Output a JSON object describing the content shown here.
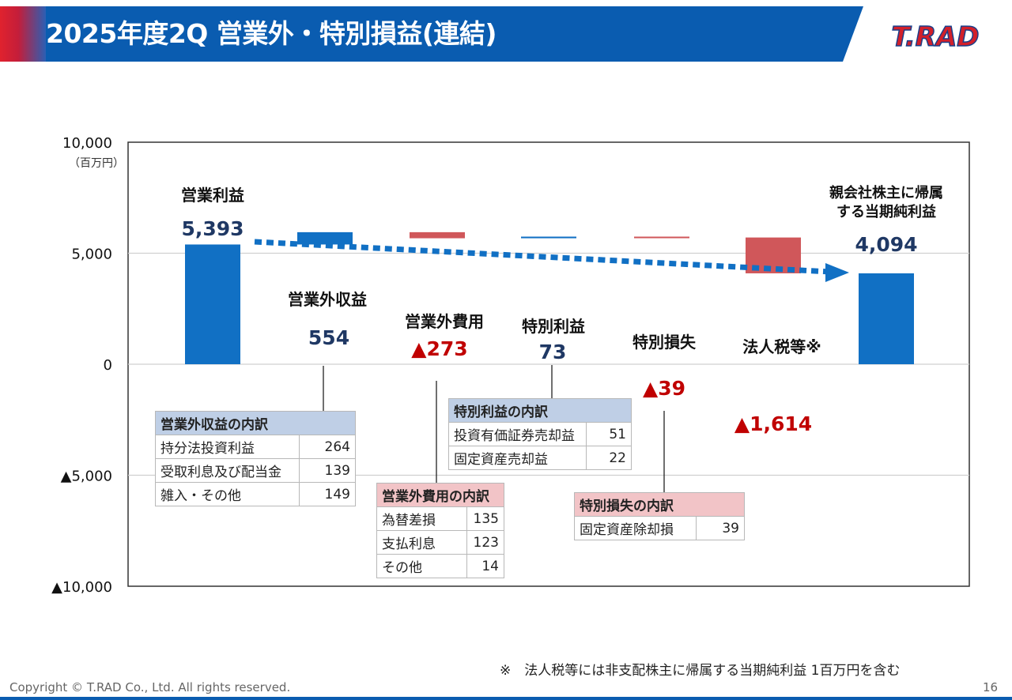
{
  "header": {
    "title": "2025年度2Q 営業外・特別損益(連結)",
    "logo_text": "T.RAD"
  },
  "chart_data": {
    "type": "bar",
    "subtype": "waterfall",
    "unit_label": "（百万円）",
    "ylim": [
      -10000,
      10000
    ],
    "yticks": [
      10000,
      5000,
      0,
      -5000,
      -10000
    ],
    "ytick_labels": [
      "10,000",
      "5,000",
      "0",
      "▲5,000",
      "▲10,000"
    ],
    "grid": true,
    "categories": [
      "営業利益",
      "営業外収益",
      "営業外費用",
      "特別利益",
      "特別損失",
      "法人税等※",
      "親会社株主に帰属する当期純利益"
    ],
    "values": [
      5393,
      554,
      -273,
      73,
      -39,
      -1614,
      4094
    ],
    "value_labels": [
      "5,393",
      "554",
      "▲273",
      "73",
      "▲39",
      "▲1,614",
      "4,094"
    ],
    "colors": {
      "positive": "#1170c4",
      "negative": "#d0575a",
      "pos_label": "#1f3864",
      "neg_label": "#c00000",
      "arrow": "#1170c4"
    }
  },
  "tables": {
    "nonop_income": {
      "header": "営業外収益の内訳",
      "rows": [
        {
          "name": "持分法投資利益",
          "value": "264"
        },
        {
          "name": "受取利息及び配当金",
          "value": "139"
        },
        {
          "name": "雑入・その他",
          "value": "149"
        }
      ]
    },
    "nonop_expense": {
      "header": "営業外費用の内訳",
      "rows": [
        {
          "name": "為替差損",
          "value": "135"
        },
        {
          "name": "支払利息",
          "value": "123"
        },
        {
          "name": "その他",
          "value": "14"
        }
      ]
    },
    "extra_income": {
      "header": "特別利益の内訳",
      "rows": [
        {
          "name": "投資有価証券売却益",
          "value": "51"
        },
        {
          "name": "固定資産売却益",
          "value": "22"
        }
      ]
    },
    "extra_loss": {
      "header": "特別損失の内訳",
      "rows": [
        {
          "name": "固定資産除却損",
          "value": "39"
        }
      ]
    }
  },
  "footnote": "※　法人税等には非支配株主に帰属する当期純利益 1百万円を含む",
  "copyright": "Copyright © T.RAD Co., Ltd. All rights reserved.",
  "page_number": "16"
}
